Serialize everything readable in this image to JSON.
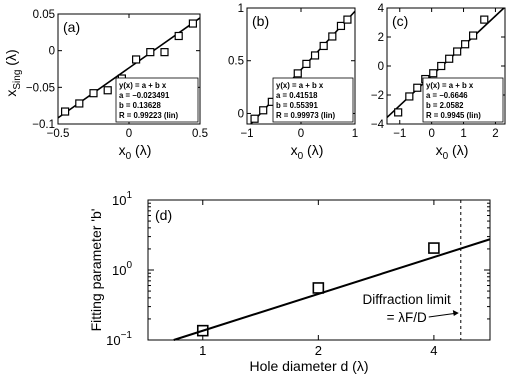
{
  "chart_data": [
    {
      "type": "scatter",
      "panel_label": "(a)",
      "xlabel": "x",
      "xlabel_sub": "0",
      "xlabel_unit": " (λ)",
      "ylabel": "x",
      "ylabel_sub": "Sing",
      "ylabel_unit": " (λ)",
      "xlim": [
        -0.5,
        0.5
      ],
      "ylim": [
        -0.1,
        0.05
      ],
      "xticks": [
        -0.5,
        0,
        0.5
      ],
      "xtick_labels": [
        "−0.5",
        "0",
        "0.5"
      ],
      "yticks": [
        -0.1,
        -0.05,
        0,
        0.05
      ],
      "ytick_labels": [
        "−0.1",
        "−0.05",
        "0",
        "0.05"
      ],
      "fit": {
        "a": -0.023491,
        "b": 0.13628
      },
      "x": [
        -0.45,
        -0.35,
        -0.25,
        -0.15,
        -0.05,
        0.05,
        0.15,
        0.25,
        0.35,
        0.45
      ],
      "y": [
        -0.083,
        -0.072,
        -0.058,
        -0.054,
        -0.038,
        -0.012,
        -0.002,
        -0.002,
        0.02,
        0.037
      ],
      "legend_lines": [
        "y(x) = a + b x",
        "a = −0.023491",
        "b = 0.13628",
        "R = 0.99223 (lin)"
      ]
    },
    {
      "type": "scatter",
      "panel_label": "(b)",
      "xlabel": "x",
      "xlabel_sub": "0",
      "xlabel_unit": " (λ)",
      "xlim": [
        -1,
        1
      ],
      "ylim": [
        -0.1,
        1
      ],
      "xticks": [
        -1,
        0,
        1
      ],
      "xtick_labels": [
        "−1",
        "0",
        "1"
      ],
      "yticks": [
        0,
        0.5,
        1
      ],
      "ytick_labels": [
        "0",
        "0.5",
        "1"
      ],
      "fit": {
        "a": 0.41518,
        "b": 0.55391
      },
      "x": [
        -0.86,
        -0.7,
        -0.54,
        -0.38,
        -0.22,
        -0.06,
        0.1,
        0.26,
        0.42,
        0.58,
        0.74,
        0.86
      ],
      "y": [
        -0.05,
        0.03,
        0.11,
        0.2,
        0.29,
        0.38,
        0.47,
        0.55,
        0.64,
        0.73,
        0.83,
        0.89
      ],
      "legend_lines": [
        "y(x) = a + b x",
        "a = 0.41518",
        "b = 0.55391",
        "R = 0.99973 (lin)"
      ]
    },
    {
      "type": "scatter",
      "panel_label": "(c)",
      "xlabel": "x",
      "xlabel_sub": "0",
      "xlabel_unit": " (λ)",
      "xlim": [
        -1.4,
        2.3
      ],
      "ylim": [
        -4,
        4
      ],
      "xticks": [
        -1,
        0,
        1,
        2
      ],
      "xtick_labels": [
        "−1",
        "0",
        "1",
        "2"
      ],
      "yticks": [
        -4,
        -2,
        0,
        2,
        4
      ],
      "ytick_labels": [
        "−4",
        "−2",
        "0",
        "2",
        "4"
      ],
      "fit": {
        "a": -0.6646,
        "b": 2.0582
      },
      "x": [
        -1.05,
        -0.7,
        -0.45,
        -0.2,
        0.05,
        0.3,
        0.55,
        0.8,
        1.05,
        1.3,
        1.65
      ],
      "y": [
        -3.2,
        -2.1,
        -1.5,
        -0.9,
        -0.5,
        0.0,
        0.5,
        1.0,
        1.5,
        2.1,
        3.2
      ],
      "legend_lines": [
        "y(x) = a + b x",
        "a = −0.6646",
        "b = 2.0582",
        "R = 0.9945 (lin)"
      ]
    },
    {
      "type": "scatter",
      "panel_label": "(d)",
      "xlabel": "Hole diameter d (λ)",
      "ylabel": "Fitting parameter 'b'",
      "x_scale": "log2",
      "y_scale": "log",
      "xlim": [
        0.72,
        5.6
      ],
      "ylim": [
        0.1,
        10
      ],
      "xticks": [
        1,
        2,
        4
      ],
      "xtick_labels": [
        "1",
        "2",
        "4"
      ],
      "yticks": [
        0.1,
        1,
        10
      ],
      "ytick_base": "10",
      "ytick_exponents": [
        "−1",
        "0",
        "1"
      ],
      "x": [
        1,
        2,
        4
      ],
      "y": [
        0.136,
        0.554,
        2.058
      ],
      "fit_line": {
        "x": [
          0.84,
          5.6
        ],
        "y": [
          0.1,
          2.75
        ]
      },
      "limit_x": 4.7,
      "annotation_lines": [
        "Diffraction limit",
        "= λF/D"
      ]
    }
  ]
}
